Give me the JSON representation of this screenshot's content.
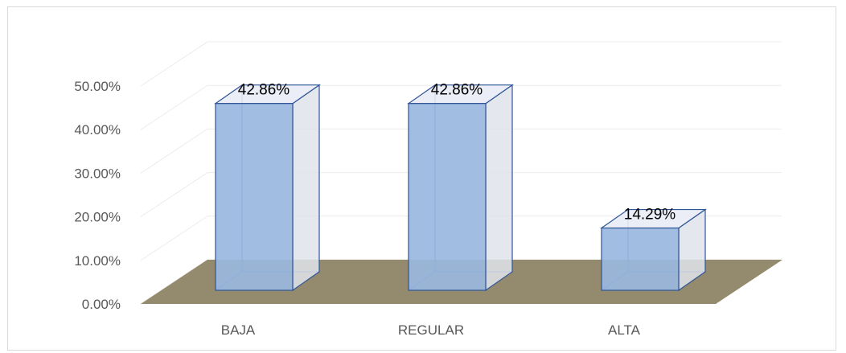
{
  "chart_data": {
    "type": "bar",
    "style": "3d-column",
    "categories": [
      "BAJA",
      "REGULAR",
      "ALTA"
    ],
    "values": [
      42.86,
      42.86,
      14.29
    ],
    "data_labels": [
      "42.86%",
      "42.86%",
      "14.29%"
    ],
    "ylim": [
      0,
      50
    ],
    "y_ticks": [
      0,
      10,
      20,
      30,
      40,
      50
    ],
    "y_tick_labels": [
      "0.00%",
      "10.00%",
      "20.00%",
      "30.00%",
      "40.00%",
      "50.00%"
    ],
    "grid": true,
    "legend": "none"
  },
  "colors": {
    "bar_front": "#9ab7e0",
    "bar_side": "#dfe3ea",
    "bar_top": "#e9ecf5",
    "bar_edge": "#2f5597",
    "floor": "#948a6d",
    "grid": "#ececec",
    "axis_text": "#595959",
    "label_text": "#000000"
  }
}
